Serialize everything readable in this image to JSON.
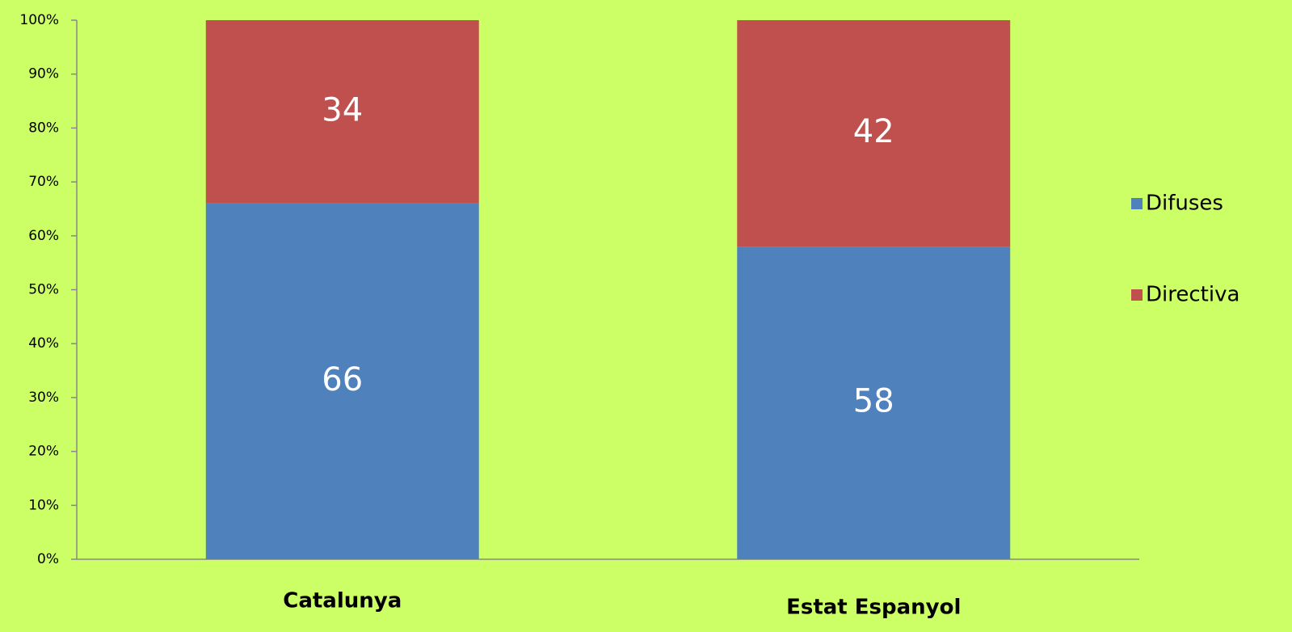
{
  "chart_data": {
    "type": "stacked_bar",
    "categories": [
      "Catalunya",
      "Estat Espanyol"
    ],
    "series": [
      {
        "name": "Difuses",
        "color": "#4f81bd",
        "values": [
          66,
          58
        ]
      },
      {
        "name": "Directiva",
        "color": "#c0504d",
        "values": [
          34,
          42
        ]
      }
    ],
    "ylim": [
      0,
      100
    ],
    "yticks": [
      {
        "value": 0,
        "label": "0%"
      },
      {
        "value": 10,
        "label": "10%"
      },
      {
        "value": 20,
        "label": "20%"
      },
      {
        "value": 30,
        "label": "30%"
      },
      {
        "value": 40,
        "label": "40%"
      },
      {
        "value": 50,
        "label": "50%"
      },
      {
        "value": 60,
        "label": "60%"
      },
      {
        "value": 70,
        "label": "70%"
      },
      {
        "value": 80,
        "label": "80%"
      },
      {
        "value": 90,
        "label": "90%"
      },
      {
        "value": 100,
        "label": "100%"
      }
    ],
    "legend": "right",
    "background": "#ccff66"
  }
}
